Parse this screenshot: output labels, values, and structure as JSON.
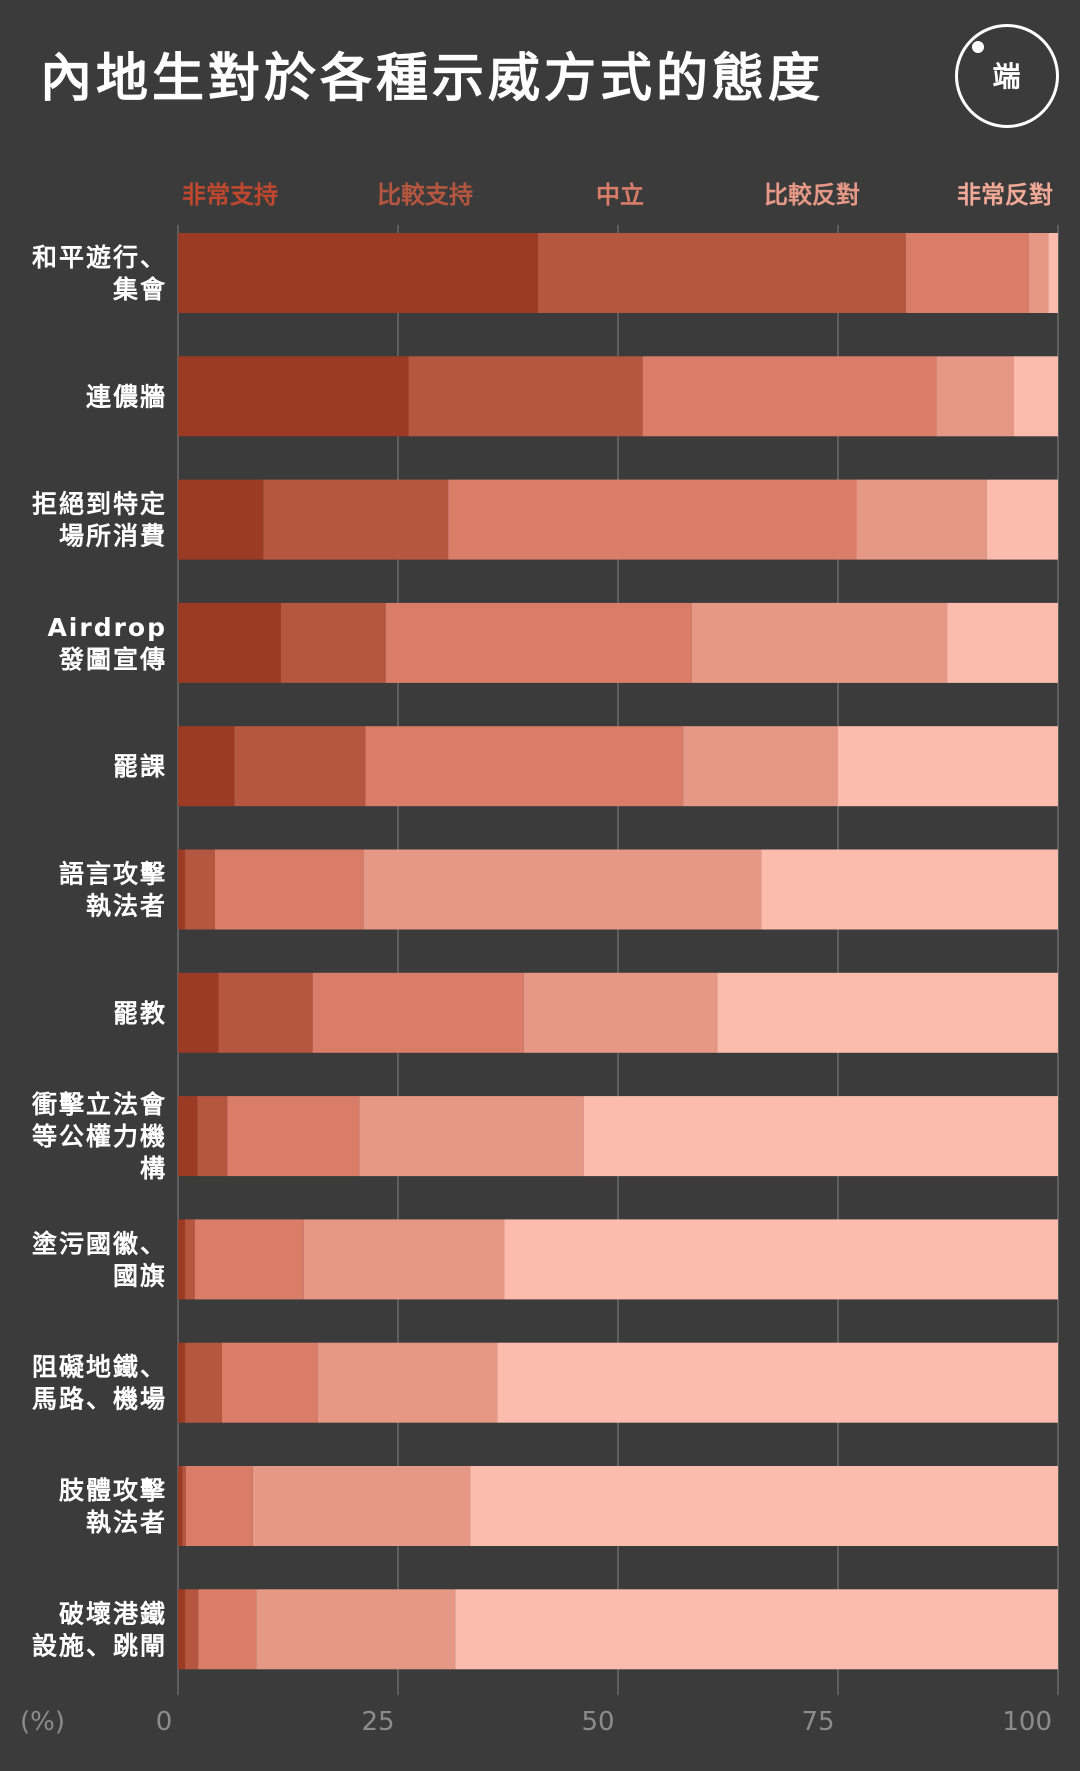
{
  "title": "內地生對於各種示威方式的態度",
  "logo": {
    "text": "端",
    "icon": "initium-logo-icon"
  },
  "chart_data": {
    "type": "bar",
    "orientation": "horizontal",
    "stacked": true,
    "title": "內地生對於各種示威方式的態度",
    "unit_label": "(%)",
    "xlim": [
      0,
      100
    ],
    "x_ticks": [
      0,
      25,
      50,
      75,
      100
    ],
    "grid": true,
    "legend_placement": "top",
    "categories": [
      "和平遊行、\n集會",
      "連儂牆",
      "拒絕到特定\n場所消費",
      "Airdrop\n發圖宣傳",
      "罷課",
      "語言攻擊\n執法者",
      "罷教",
      "衝擊立法會\n等公權力機\n構",
      "塗污國徽、\n國旗",
      "阻礙地鐵、\n馬路、機場",
      "肢體攻擊\n執法者",
      "破壞港鐵\n設施、跳閘"
    ],
    "series": [
      {
        "name": "非常支持",
        "color": "#9b3b26",
        "values": [
          40.9,
          26.2,
          9.7,
          11.7,
          6.4,
          0.8,
          4.6,
          2.2,
          0.8,
          0.8,
          0.5,
          0.8
        ]
      },
      {
        "name": "比較支持",
        "color": "#b55640",
        "values": [
          41.8,
          26.6,
          21.0,
          11.9,
          14.9,
          3.4,
          10.7,
          3.4,
          1.1,
          4.2,
          0.4,
          1.5
        ]
      },
      {
        "name": "中立",
        "color": "#d97d69",
        "values": [
          14.0,
          33.4,
          46.4,
          34.8,
          36.1,
          16.9,
          24.0,
          15.0,
          12.4,
          10.9,
          7.6,
          6.6
        ]
      },
      {
        "name": "比較反對",
        "color": "#e69886",
        "values": [
          2.2,
          8.8,
          14.8,
          29.0,
          17.6,
          45.2,
          22.0,
          25.5,
          22.8,
          20.4,
          24.7,
          22.6
        ]
      },
      {
        "name": "非常反對",
        "color": "#fcbcad",
        "values": [
          1.1,
          5.0,
          8.1,
          12.6,
          25.0,
          33.7,
          38.7,
          53.9,
          62.9,
          63.7,
          66.8,
          68.5
        ]
      }
    ]
  }
}
